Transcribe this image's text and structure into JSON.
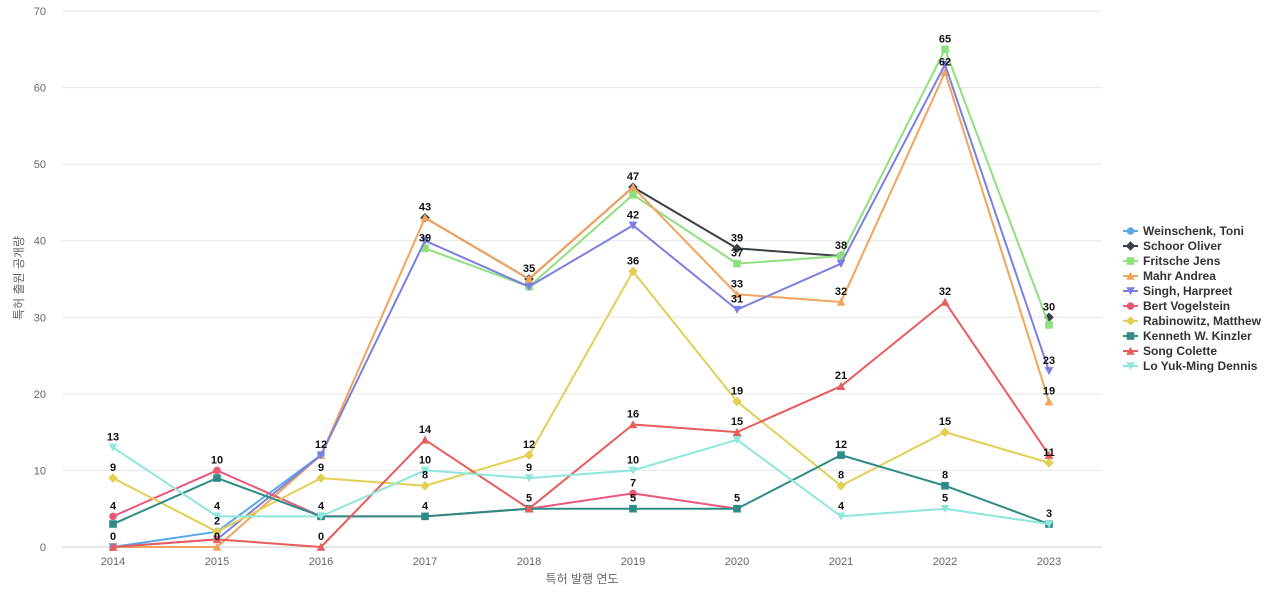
{
  "chart_data": {
    "type": "line",
    "title": "",
    "xlabel": "특허 발행 연도",
    "ylabel": "특허 출원 공개량",
    "x": [
      "2014",
      "2015",
      "2016",
      "2017",
      "2018",
      "2019",
      "2020",
      "2021",
      "2022",
      "2023"
    ],
    "ylim": [
      0,
      70
    ],
    "yticks": [
      0,
      10,
      20,
      30,
      40,
      50,
      60,
      70
    ],
    "grid": true,
    "legend_position": "right",
    "series": [
      {
        "name": "Weinschenk, Toni",
        "color": "#5aa9e6",
        "marker": "circle",
        "values": [
          0,
          2,
          12,
          null,
          null,
          null,
          null,
          null,
          null,
          null
        ]
      },
      {
        "name": "Schoor Oliver",
        "color": "#3a3f47",
        "marker": "diamond",
        "values": [
          null,
          null,
          null,
          43,
          35,
          47,
          39,
          38,
          null,
          30
        ]
      },
      {
        "name": "Fritsche Jens",
        "color": "#8ee07f",
        "marker": "square",
        "values": [
          null,
          null,
          null,
          39,
          34,
          46,
          37,
          38,
          65,
          29
        ]
      },
      {
        "name": "Mahr Andrea",
        "color": "#f2a35e",
        "marker": "triangle",
        "values": [
          0,
          0,
          12,
          43,
          35,
          47,
          33,
          32,
          62,
          19
        ]
      },
      {
        "name": "Singh, Harpreet",
        "color": "#7b7fe0",
        "marker": "triangle-down",
        "values": [
          0,
          1,
          12,
          40,
          34,
          42,
          31,
          37,
          63,
          23
        ]
      },
      {
        "name": "Bert Vogelstein",
        "color": "#e8597a",
        "marker": "circle",
        "values": [
          4,
          10,
          4,
          4,
          5,
          7,
          5,
          null,
          null,
          null
        ]
      },
      {
        "name": "Rabinowitz, Matthew",
        "color": "#e2cf55",
        "marker": "diamond",
        "values": [
          9,
          2,
          9,
          8,
          12,
          36,
          19,
          8,
          15,
          11
        ]
      },
      {
        "name": "Kenneth W. Kinzler",
        "color": "#2e8b86",
        "marker": "square",
        "values": [
          3,
          9,
          4,
          4,
          5,
          5,
          5,
          12,
          8,
          3
        ]
      },
      {
        "name": "Song Colette",
        "color": "#e85c5c",
        "marker": "triangle",
        "values": [
          0,
          1,
          0,
          14,
          5,
          16,
          15,
          21,
          32,
          12
        ]
      },
      {
        "name": "Lo Yuk-Ming Dennis",
        "color": "#8ee6dc",
        "marker": "triangle-down",
        "values": [
          13,
          4,
          4,
          10,
          9,
          10,
          14,
          4,
          5,
          3
        ]
      }
    ],
    "data_labels": [
      {
        "x": "2014",
        "y": 13,
        "text": "13"
      },
      {
        "x": "2014",
        "y": 9,
        "text": "9"
      },
      {
        "x": "2014",
        "y": 4,
        "text": "4"
      },
      {
        "x": "2014",
        "y": 0,
        "text": "0"
      },
      {
        "x": "2015",
        "y": 10,
        "text": "10"
      },
      {
        "x": "2015",
        "y": 4,
        "text": "4"
      },
      {
        "x": "2015",
        "y": 2,
        "text": "2"
      },
      {
        "x": "2015",
        "y": 0,
        "text": "0"
      },
      {
        "x": "2016",
        "y": 12,
        "text": "12"
      },
      {
        "x": "2016",
        "y": 9,
        "text": "9"
      },
      {
        "x": "2016",
        "y": 4,
        "text": "4"
      },
      {
        "x": "2016",
        "y": 0,
        "text": "0"
      },
      {
        "x": "2017",
        "y": 43,
        "text": "43"
      },
      {
        "x": "2017",
        "y": 39,
        "text": "39"
      },
      {
        "x": "2017",
        "y": 14,
        "text": "14"
      },
      {
        "x": "2017",
        "y": 10,
        "text": "10"
      },
      {
        "x": "2017",
        "y": 8,
        "text": "8"
      },
      {
        "x": "2017",
        "y": 4,
        "text": "4"
      },
      {
        "x": "2018",
        "y": 35,
        "text": "35"
      },
      {
        "x": "2018",
        "y": 12,
        "text": "12"
      },
      {
        "x": "2018",
        "y": 9,
        "text": "9"
      },
      {
        "x": "2018",
        "y": 5,
        "text": "5"
      },
      {
        "x": "2019",
        "y": 47,
        "text": "47"
      },
      {
        "x": "2019",
        "y": 42,
        "text": "42"
      },
      {
        "x": "2019",
        "y": 36,
        "text": "36"
      },
      {
        "x": "2019",
        "y": 16,
        "text": "16"
      },
      {
        "x": "2019",
        "y": 10,
        "text": "10"
      },
      {
        "x": "2019",
        "y": 7,
        "text": "7"
      },
      {
        "x": "2019",
        "y": 5,
        "text": "5"
      },
      {
        "x": "2020",
        "y": 39,
        "text": "39"
      },
      {
        "x": "2020",
        "y": 37,
        "text": "37"
      },
      {
        "x": "2020",
        "y": 33,
        "text": "33"
      },
      {
        "x": "2020",
        "y": 31,
        "text": "31"
      },
      {
        "x": "2020",
        "y": 19,
        "text": "19"
      },
      {
        "x": "2020",
        "y": 15,
        "text": "15"
      },
      {
        "x": "2020",
        "y": 5,
        "text": "5"
      },
      {
        "x": "2021",
        "y": 38,
        "text": "38"
      },
      {
        "x": "2021",
        "y": 32,
        "text": "32"
      },
      {
        "x": "2021",
        "y": 21,
        "text": "21"
      },
      {
        "x": "2021",
        "y": 12,
        "text": "12"
      },
      {
        "x": "2021",
        "y": 8,
        "text": "8"
      },
      {
        "x": "2021",
        "y": 4,
        "text": "4"
      },
      {
        "x": "2022",
        "y": 65,
        "text": "65"
      },
      {
        "x": "2022",
        "y": 62,
        "text": "62"
      },
      {
        "x": "2022",
        "y": 32,
        "text": "32"
      },
      {
        "x": "2022",
        "y": 15,
        "text": "15"
      },
      {
        "x": "2022",
        "y": 8,
        "text": "8"
      },
      {
        "x": "2022",
        "y": 5,
        "text": "5"
      },
      {
        "x": "2023",
        "y": 30,
        "text": "30"
      },
      {
        "x": "2023",
        "y": 23,
        "text": "23"
      },
      {
        "x": "2023",
        "y": 19,
        "text": "19"
      },
      {
        "x": "2023",
        "y": 11,
        "text": "11"
      },
      {
        "x": "2023",
        "y": 3,
        "text": "3"
      }
    ]
  }
}
